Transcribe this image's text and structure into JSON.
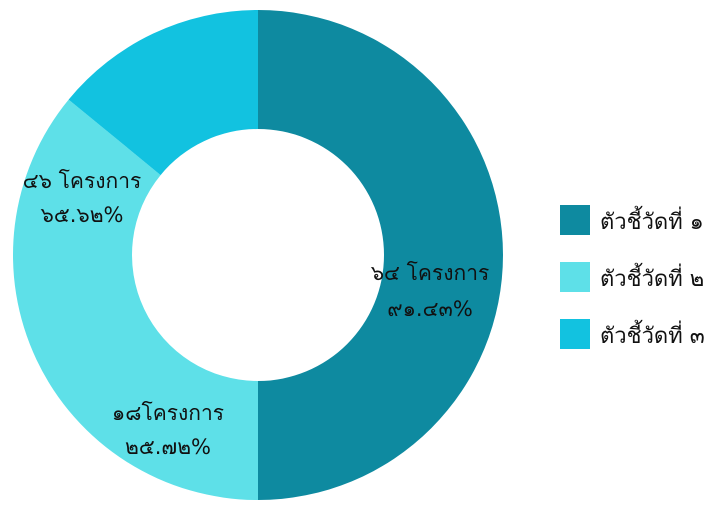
{
  "chart_data": {
    "type": "pie",
    "donut": true,
    "legend_position": "right",
    "slices": [
      {
        "legend": "ตัวชี้วัดที่ ๑",
        "value": 64,
        "label": "๖๔ โครงการ",
        "percent": "๙๑.๔๓%",
        "color": "#0E8AA0"
      },
      {
        "legend": "ตัวชี้วัดที่ ๒",
        "value": 46,
        "label": "๔๖ โครงการ",
        "percent": "๖๕.๖๒%",
        "color": "#5EE0E8"
      },
      {
        "legend": "ตัวชี้วัดที่ ๓",
        "value": 18,
        "label": "๑๘โครงการ",
        "percent": "๒๕.๗๒%",
        "color": "#12C2E0"
      }
    ]
  }
}
